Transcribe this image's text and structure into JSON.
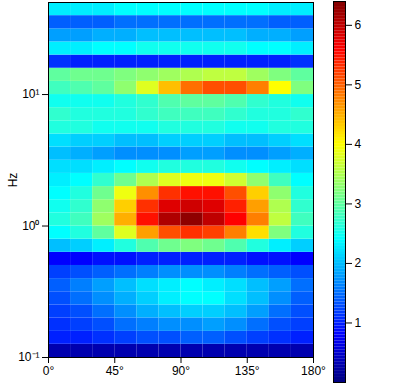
{
  "chart_data": {
    "type": "heatmap",
    "ylabel": "Hz",
    "log": "y",
    "xlim": [
      0,
      180
    ],
    "xticks": [
      {
        "value": 0,
        "label": "0°"
      },
      {
        "value": 45,
        "label": "45°"
      },
      {
        "value": 90,
        "label": "90°"
      },
      {
        "value": 135,
        "label": "135°"
      },
      {
        "value": 180,
        "label": "180°"
      }
    ],
    "ylim": [
      0.1,
      50.12
    ],
    "yticks": [
      {
        "value": 0.1,
        "label": "10⁻¹"
      },
      {
        "value": 1,
        "label": "10⁰"
      },
      {
        "value": 10,
        "label": "10¹"
      }
    ],
    "x_bins": [
      0,
      15,
      30,
      45,
      60,
      75,
      90,
      105,
      120,
      135,
      150,
      165,
      180
    ],
    "y_bins": [
      0.1,
      0.126,
      0.158,
      0.2,
      0.251,
      0.316,
      0.398,
      0.501,
      0.631,
      0.794,
      1,
      1.259,
      1.585,
      1.995,
      2.512,
      3.162,
      3.981,
      5.012,
      6.31,
      7.943,
      10,
      12.59,
      15.85,
      19.95,
      25.12,
      31.62,
      39.81,
      50.12
    ],
    "values": [
      [
        0.3,
        0.3,
        0.3,
        0.3,
        0.3,
        0.3,
        0.3,
        0.3,
        0.3,
        0.3,
        0.3,
        0.3
      ],
      [
        1.0,
        1.0,
        1.1,
        1.2,
        1.3,
        1.3,
        1.4,
        1.4,
        1.3,
        1.2,
        1.1,
        1.0
      ],
      [
        1.1,
        1.2,
        1.3,
        1.5,
        1.6,
        1.7,
        1.7,
        1.8,
        1.7,
        1.5,
        1.3,
        1.2
      ],
      [
        1.2,
        1.3,
        1.5,
        1.7,
        1.9,
        2.0,
        2.1,
        2.1,
        2.0,
        1.8,
        1.5,
        1.3
      ],
      [
        1.3,
        1.5,
        1.7,
        1.9,
        2.1,
        2.3,
        2.4,
        2.4,
        2.2,
        2.0,
        1.7,
        1.4
      ],
      [
        1.4,
        1.6,
        1.8,
        2.0,
        2.2,
        2.3,
        2.4,
        2.3,
        2.2,
        2.0,
        1.8,
        1.5
      ],
      [
        1.2,
        1.3,
        1.4,
        1.5,
        1.6,
        1.7,
        1.7,
        1.7,
        1.6,
        1.5,
        1.4,
        1.3
      ],
      [
        0.8,
        0.8,
        0.9,
        0.9,
        1.0,
        1.0,
        1.0,
        1.0,
        1.0,
        0.9,
        0.9,
        0.8
      ],
      [
        2.0,
        2.1,
        2.3,
        2.6,
        2.9,
        3.1,
        3.2,
        3.1,
        2.9,
        2.6,
        2.3,
        2.1
      ],
      [
        2.4,
        2.6,
        3.0,
        3.8,
        4.6,
        5.1,
        5.3,
        5.2,
        4.8,
        4.2,
        3.2,
        2.6
      ],
      [
        2.6,
        2.8,
        3.4,
        4.5,
        5.5,
        6.1,
        6.3,
        6.0,
        5.6,
        4.8,
        3.6,
        2.8
      ],
      [
        2.5,
        2.7,
        3.3,
        4.3,
        5.3,
        5.8,
        5.9,
        5.8,
        5.4,
        4.6,
        3.5,
        2.7
      ],
      [
        2.4,
        2.6,
        3.1,
        3.9,
        4.7,
        5.3,
        5.5,
        5.5,
        5.1,
        4.3,
        3.3,
        2.6
      ],
      [
        2.3,
        2.4,
        2.7,
        3.1,
        3.5,
        3.8,
        3.9,
        3.9,
        3.7,
        3.3,
        2.8,
        2.4
      ],
      [
        2.2,
        2.2,
        2.3,
        2.4,
        2.5,
        2.6,
        2.6,
        2.6,
        2.5,
        2.4,
        2.3,
        2.2
      ],
      [
        2.0,
        1.9,
        1.8,
        1.7,
        1.7,
        1.7,
        1.8,
        1.8,
        1.7,
        1.7,
        1.8,
        1.9
      ],
      [
        2.2,
        2.1,
        2.1,
        2.0,
        2.0,
        2.1,
        2.1,
        2.1,
        2.0,
        2.0,
        2.1,
        2.2
      ],
      [
        2.6,
        2.6,
        2.5,
        2.5,
        2.5,
        2.6,
        2.6,
        2.6,
        2.5,
        2.5,
        2.6,
        2.6
      ],
      [
        2.7,
        2.6,
        2.6,
        2.6,
        2.7,
        2.8,
        2.8,
        2.8,
        2.7,
        2.6,
        2.6,
        2.7
      ],
      [
        2.5,
        2.5,
        2.5,
        2.6,
        2.7,
        2.9,
        3.0,
        3.0,
        2.9,
        2.7,
        2.6,
        2.5
      ],
      [
        2.8,
        2.9,
        3.0,
        3.3,
        3.8,
        4.4,
        4.9,
        5.1,
        5.1,
        4.8,
        4.0,
        3.2
      ],
      [
        3.0,
        3.1,
        3.1,
        3.2,
        3.3,
        3.4,
        3.5,
        3.6,
        3.6,
        3.4,
        3.2,
        3.0
      ],
      [
        1.1,
        1.0,
        1.0,
        1.0,
        1.0,
        1.0,
        1.0,
        1.0,
        1.0,
        1.0,
        1.0,
        1.1
      ],
      [
        2.3,
        2.3,
        2.4,
        2.4,
        2.5,
        2.5,
        2.5,
        2.5,
        2.5,
        2.4,
        2.4,
        2.3
      ],
      [
        1.8,
        1.8,
        1.9,
        1.9,
        2.0,
        2.0,
        2.0,
        2.0,
        2.0,
        1.9,
        1.9,
        1.8
      ],
      [
        1.4,
        1.4,
        1.4,
        1.5,
        1.5,
        1.5,
        1.5,
        1.5,
        1.5,
        1.5,
        1.4,
        1.4
      ],
      [
        2.3,
        2.3,
        2.3,
        2.4,
        2.4,
        2.4,
        2.4,
        2.4,
        2.4,
        2.4,
        2.3,
        2.3
      ]
    ],
    "colorbar": {
      "lim": [
        0,
        6.4
      ],
      "ticks": [
        1,
        2,
        3,
        4,
        5,
        6
      ]
    }
  }
}
